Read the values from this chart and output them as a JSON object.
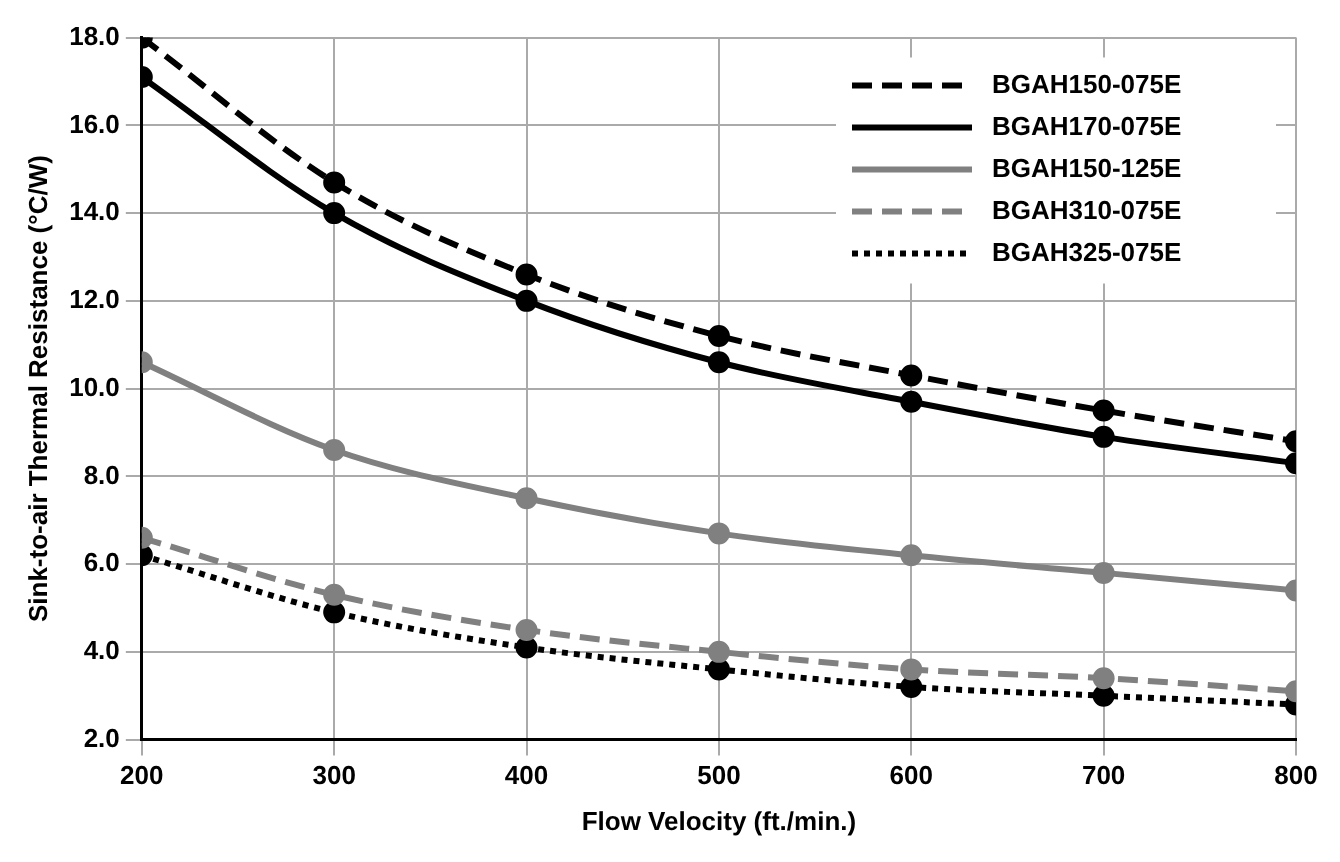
{
  "chart_data": {
    "type": "line",
    "xlabel": "Flow Velocity (ft./min.)",
    "ylabel": "Sink-to-air Thermal Resistance (°C/W)",
    "x": [
      200,
      300,
      400,
      500,
      600,
      700,
      800
    ],
    "series": [
      {
        "name": "BGAH150-075E",
        "color": "#000000",
        "line_style": "dashed",
        "values": [
          18.0,
          14.7,
          12.6,
          11.2,
          10.3,
          9.5,
          8.8
        ]
      },
      {
        "name": "BGAH170-075E",
        "color": "#000000",
        "line_style": "solid",
        "values": [
          17.1,
          14.0,
          12.0,
          10.6,
          9.7,
          8.9,
          8.3
        ]
      },
      {
        "name": "BGAH150-125E",
        "color": "#808080",
        "line_style": "solid",
        "values": [
          10.6,
          8.6,
          7.5,
          6.7,
          6.2,
          5.8,
          5.4
        ]
      },
      {
        "name": "BGAH310-075E",
        "color": "#808080",
        "line_style": "dashed",
        "values": [
          6.6,
          5.3,
          4.5,
          4.0,
          3.6,
          3.4,
          3.1
        ]
      },
      {
        "name": "BGAH325-075E",
        "color": "#000000",
        "line_style": "dotted",
        "values": [
          6.2,
          4.9,
          4.1,
          3.6,
          3.2,
          3.0,
          2.8
        ]
      }
    ],
    "xlim": [
      200,
      800
    ],
    "xticks": [
      200,
      300,
      400,
      500,
      600,
      700,
      800
    ],
    "ylim": [
      2,
      18
    ],
    "yticks": [
      {
        "value": 2,
        "label": "2.0"
      },
      {
        "value": 4,
        "label": "4.0"
      },
      {
        "value": 6,
        "label": "6.0"
      },
      {
        "value": 8,
        "label": "8.0"
      },
      {
        "value": 10,
        "label": "10.0"
      },
      {
        "value": 12,
        "label": "12.0"
      },
      {
        "value": 14,
        "label": "14.0"
      },
      {
        "value": 16,
        "label": "16.0"
      },
      {
        "value": 18,
        "label": "18.0"
      }
    ],
    "grid": true,
    "legend": "top right",
    "marker": "circle"
  }
}
